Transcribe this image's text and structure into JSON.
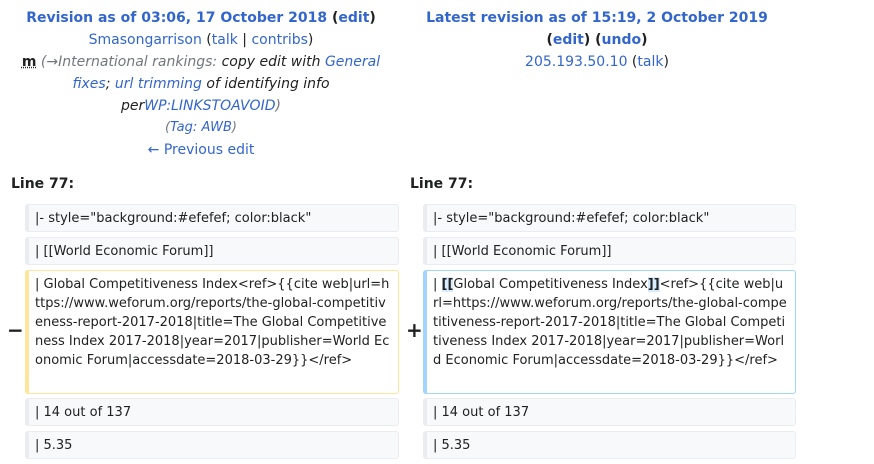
{
  "left_header": {
    "title_prefix": "Revision as of 03:06, 17 October 2018",
    "edit_label": "edit",
    "user": "Smasongarrison",
    "talk_label": "talk",
    "contribs_label": "contribs",
    "minor_mark": "m",
    "summary_arrow": "→International rankings:",
    "summary_text_1": "copy edit with",
    "summary_link_1": "General fixes",
    "summary_sep": ";",
    "summary_link_2": "url trimming",
    "summary_text_2": "of identifying info per",
    "summary_link_3": "WP:LINKSTOAVOID",
    "tag_prefix": "Tag:",
    "tag_name": "AWB",
    "prev_edit": "← Previous edit"
  },
  "right_header": {
    "title": "Latest revision as of 15:19, 2 October 2019",
    "edit_label": "edit",
    "undo_label": "undo",
    "user_ip": "205.193.50.10",
    "talk_label": "talk"
  },
  "diff": {
    "left_line_label": "Line 77:",
    "right_line_label": "Line 77:",
    "minus_marker": "−",
    "plus_marker": "+",
    "context_1": "|- style=\"background:#efefef; color:black\"",
    "context_2": "| [[World Economic Forum]]",
    "deleted_line": "| Global Competitiveness Index<ref>{{cite web|url=https://www.weforum.org/reports/the-global-competitiveness-report-2017-2018|title=The Global Competitiveness Index 2017-2018|year=2017|publisher=World Economic Forum|accessdate=2018-03-29}}</ref>",
    "added_pre": "| ",
    "added_mark_open": "[[",
    "added_mid": "Global Competitiveness Index",
    "added_mark_close": "]]",
    "added_post": "<ref>{{cite web|url=https://www.weforum.org/reports/the-global-competitiveness-report-2017-2018|title=The Global Competitiveness Index 2017-2018|year=2017|publisher=World Economic Forum|accessdate=2018-03-29}}</ref>",
    "context_3": "| 14 out of 137",
    "context_4": "| 5.35"
  }
}
